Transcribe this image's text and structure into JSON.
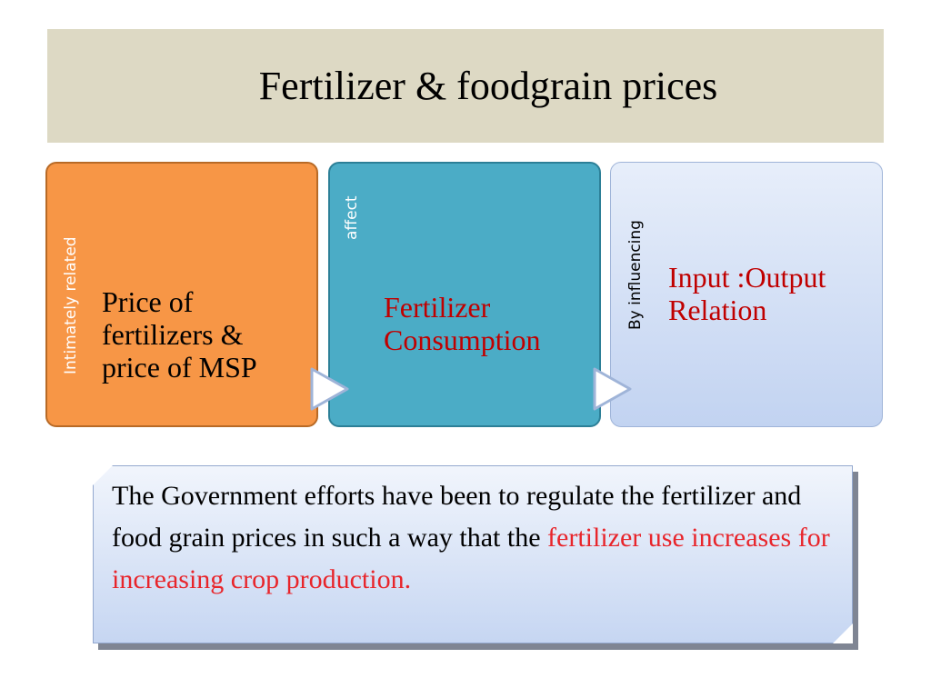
{
  "title": "Fertilizer & foodgrain prices",
  "steps": [
    {
      "side_label": "Intimately related",
      "text": "Price of\nfertilizers &\nprice of MSP",
      "fill_color": "#f79646"
    },
    {
      "side_label": "affect",
      "text": "Fertilizer\nConsumption",
      "fill_color": "#4bacc6"
    },
    {
      "side_label": "By influencing",
      "text": "Input :Output\nRelation",
      "fill_color": "#c9d9f4"
    }
  ],
  "note": {
    "text_start": "The Government efforts have been to regulate the fertilizer and food grain prices in such a way that the ",
    "text_highlight": "fertilizer use increases for increasing crop production.",
    "highlight_color": "#e8252b"
  },
  "colors": {
    "title_background": "#ddd9c4",
    "emphasis_text": "#c00000"
  },
  "icons": {
    "connector": "chevron-right-arrow-icon"
  }
}
